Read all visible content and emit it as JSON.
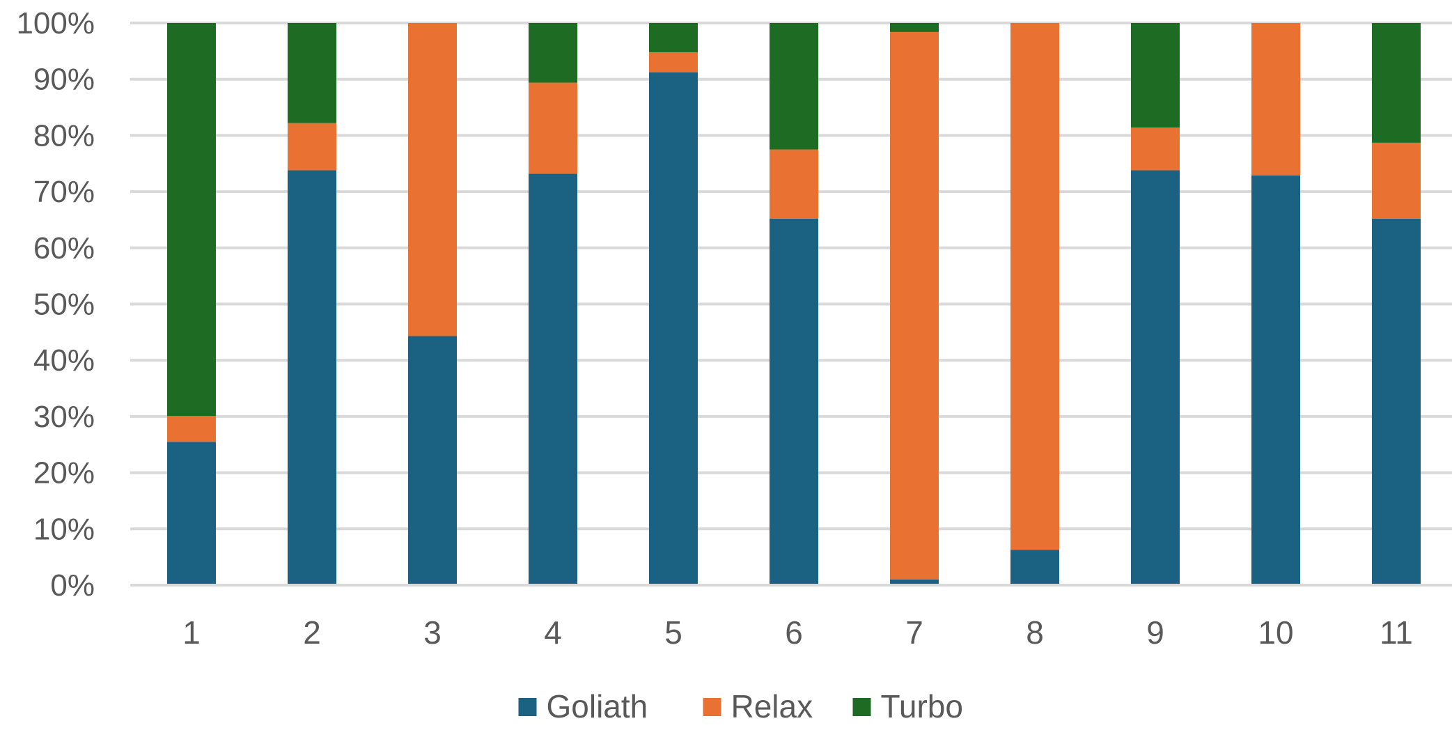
{
  "chart_data": {
    "type": "bar",
    "stacked": true,
    "percent": true,
    "categories": [
      "1",
      "2",
      "3",
      "4",
      "5",
      "6",
      "7",
      "8",
      "9",
      "10",
      "11"
    ],
    "series": [
      {
        "name": "Goliath",
        "color": "#1a6182",
        "values": [
          25.5,
          73.8,
          44.3,
          73.2,
          91.2,
          65.2,
          1.0,
          6.3,
          73.8,
          72.9,
          65.2
        ]
      },
      {
        "name": "Relax",
        "color": "#e97132",
        "values": [
          4.6,
          8.4,
          55.7,
          16.2,
          3.6,
          12.3,
          97.4,
          93.7,
          7.6,
          27.1,
          13.5
        ]
      },
      {
        "name": "Turbo",
        "color": "#1e6b24",
        "values": [
          69.9,
          17.8,
          0.0,
          10.6,
          5.2,
          22.5,
          1.6,
          0.0,
          18.6,
          0.0,
          21.3
        ]
      }
    ],
    "y_ticks": [
      "0%",
      "10%",
      "20%",
      "30%",
      "40%",
      "50%",
      "60%",
      "70%",
      "80%",
      "90%",
      "100%"
    ],
    "ylim": [
      0,
      100
    ],
    "title": "",
    "xlabel": "",
    "ylabel": "",
    "grid": true,
    "legend_position": "bottom",
    "gridline_color": "#d9d9d9",
    "axis_color": "#d9d9d9"
  }
}
